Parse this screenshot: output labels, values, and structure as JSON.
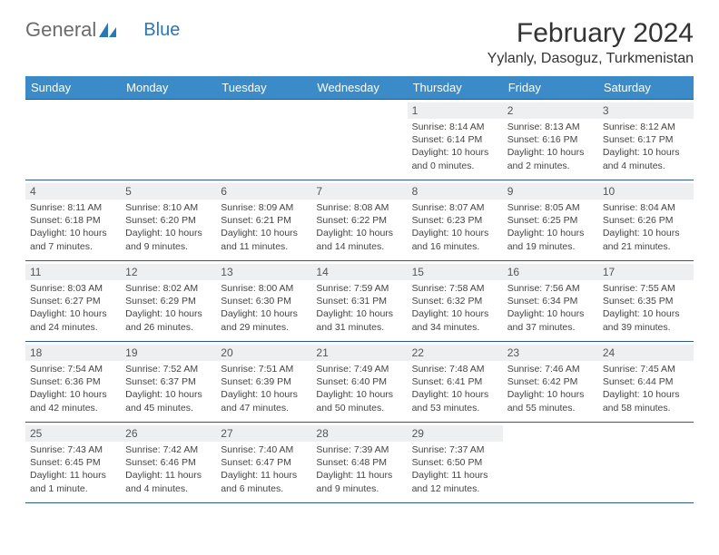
{
  "logo": {
    "text1": "General",
    "text2": "Blue"
  },
  "title": "February 2024",
  "location": "Yylanly, Dasoguz, Turkmenistan",
  "colors": {
    "header_bg": "#3b8bc8",
    "header_text": "#ffffff",
    "rule": "#2a5a8a",
    "daynum_bg": "#edeff1",
    "logo_gray": "#6b6b6b",
    "logo_blue": "#2a77b8"
  },
  "dayNames": [
    "Sunday",
    "Monday",
    "Tuesday",
    "Wednesday",
    "Thursday",
    "Friday",
    "Saturday"
  ],
  "weeks": [
    [
      null,
      null,
      null,
      null,
      {
        "n": "1",
        "sr": "8:14 AM",
        "ss": "6:14 PM",
        "dl": "10 hours and 0 minutes."
      },
      {
        "n": "2",
        "sr": "8:13 AM",
        "ss": "6:16 PM",
        "dl": "10 hours and 2 minutes."
      },
      {
        "n": "3",
        "sr": "8:12 AM",
        "ss": "6:17 PM",
        "dl": "10 hours and 4 minutes."
      }
    ],
    [
      {
        "n": "4",
        "sr": "8:11 AM",
        "ss": "6:18 PM",
        "dl": "10 hours and 7 minutes."
      },
      {
        "n": "5",
        "sr": "8:10 AM",
        "ss": "6:20 PM",
        "dl": "10 hours and 9 minutes."
      },
      {
        "n": "6",
        "sr": "8:09 AM",
        "ss": "6:21 PM",
        "dl": "10 hours and 11 minutes."
      },
      {
        "n": "7",
        "sr": "8:08 AM",
        "ss": "6:22 PM",
        "dl": "10 hours and 14 minutes."
      },
      {
        "n": "8",
        "sr": "8:07 AM",
        "ss": "6:23 PM",
        "dl": "10 hours and 16 minutes."
      },
      {
        "n": "9",
        "sr": "8:05 AM",
        "ss": "6:25 PM",
        "dl": "10 hours and 19 minutes."
      },
      {
        "n": "10",
        "sr": "8:04 AM",
        "ss": "6:26 PM",
        "dl": "10 hours and 21 minutes."
      }
    ],
    [
      {
        "n": "11",
        "sr": "8:03 AM",
        "ss": "6:27 PM",
        "dl": "10 hours and 24 minutes."
      },
      {
        "n": "12",
        "sr": "8:02 AM",
        "ss": "6:29 PM",
        "dl": "10 hours and 26 minutes."
      },
      {
        "n": "13",
        "sr": "8:00 AM",
        "ss": "6:30 PM",
        "dl": "10 hours and 29 minutes."
      },
      {
        "n": "14",
        "sr": "7:59 AM",
        "ss": "6:31 PM",
        "dl": "10 hours and 31 minutes."
      },
      {
        "n": "15",
        "sr": "7:58 AM",
        "ss": "6:32 PM",
        "dl": "10 hours and 34 minutes."
      },
      {
        "n": "16",
        "sr": "7:56 AM",
        "ss": "6:34 PM",
        "dl": "10 hours and 37 minutes."
      },
      {
        "n": "17",
        "sr": "7:55 AM",
        "ss": "6:35 PM",
        "dl": "10 hours and 39 minutes."
      }
    ],
    [
      {
        "n": "18",
        "sr": "7:54 AM",
        "ss": "6:36 PM",
        "dl": "10 hours and 42 minutes."
      },
      {
        "n": "19",
        "sr": "7:52 AM",
        "ss": "6:37 PM",
        "dl": "10 hours and 45 minutes."
      },
      {
        "n": "20",
        "sr": "7:51 AM",
        "ss": "6:39 PM",
        "dl": "10 hours and 47 minutes."
      },
      {
        "n": "21",
        "sr": "7:49 AM",
        "ss": "6:40 PM",
        "dl": "10 hours and 50 minutes."
      },
      {
        "n": "22",
        "sr": "7:48 AM",
        "ss": "6:41 PM",
        "dl": "10 hours and 53 minutes."
      },
      {
        "n": "23",
        "sr": "7:46 AM",
        "ss": "6:42 PM",
        "dl": "10 hours and 55 minutes."
      },
      {
        "n": "24",
        "sr": "7:45 AM",
        "ss": "6:44 PM",
        "dl": "10 hours and 58 minutes."
      }
    ],
    [
      {
        "n": "25",
        "sr": "7:43 AM",
        "ss": "6:45 PM",
        "dl": "11 hours and 1 minute."
      },
      {
        "n": "26",
        "sr": "7:42 AM",
        "ss": "6:46 PM",
        "dl": "11 hours and 4 minutes."
      },
      {
        "n": "27",
        "sr": "7:40 AM",
        "ss": "6:47 PM",
        "dl": "11 hours and 6 minutes."
      },
      {
        "n": "28",
        "sr": "7:39 AM",
        "ss": "6:48 PM",
        "dl": "11 hours and 9 minutes."
      },
      {
        "n": "29",
        "sr": "7:37 AM",
        "ss": "6:50 PM",
        "dl": "11 hours and 12 minutes."
      },
      null,
      null
    ]
  ],
  "labels": {
    "sunrise": "Sunrise:",
    "sunset": "Sunset:",
    "daylight": "Daylight:"
  }
}
